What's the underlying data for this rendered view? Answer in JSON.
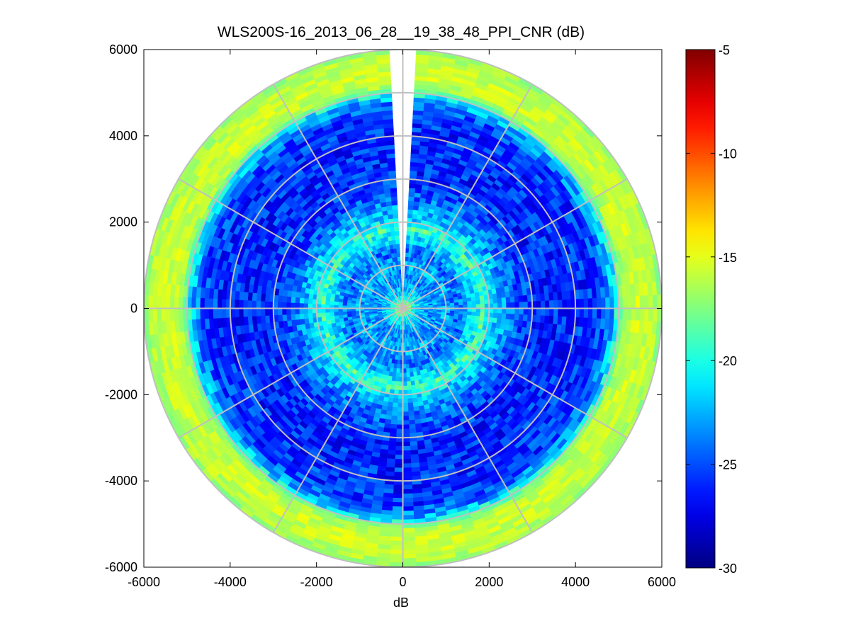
{
  "chart_data": {
    "type": "heatmap",
    "subtype": "polar-ppi",
    "title": "WLS200S-16_2013_06_28__19_38_48_PPI_CNR (dB)",
    "xlabel": "dB",
    "ylabel": "",
    "xlim": [
      -6000,
      6000
    ],
    "ylim": [
      -6000,
      6000
    ],
    "xticks": [
      "-6000",
      "-4000",
      "-2000",
      "0",
      "2000",
      "4000",
      "6000"
    ],
    "yticks": [
      "6000",
      "4000",
      "2000",
      "0",
      "-2000",
      "-4000",
      "-6000"
    ],
    "xtick_values": [
      -6000,
      -4000,
      -2000,
      0,
      2000,
      4000,
      6000
    ],
    "ytick_values": [
      6000,
      4000,
      2000,
      0,
      -2000,
      -4000,
      -6000
    ],
    "max_range": 6000,
    "range_rings": [
      1000,
      2000,
      3000,
      4000,
      5000,
      6000
    ],
    "spoke_angles_deg": [
      0,
      30,
      60,
      90,
      120,
      150,
      180,
      210,
      240,
      270,
      300,
      330
    ],
    "missing_sector_deg": [
      -4,
      4
    ],
    "grid": true,
    "colorbar": {
      "min": -30,
      "max": -5,
      "colormap": "jet",
      "ticks": [
        "-5",
        "-10",
        "-15",
        "-20",
        "-25",
        "-30"
      ],
      "tick_values": [
        -5,
        -10,
        -15,
        -20,
        -25,
        -30
      ]
    },
    "cnr_profile_by_range": {
      "range_m": [
        0,
        100,
        300,
        600,
        900,
        1000,
        1300,
        1500,
        1700,
        1850,
        2000,
        2100,
        2400,
        2800,
        3200,
        4000,
        4600,
        4900,
        5100,
        5400,
        5800,
        6000
      ],
      "cnr_db": [
        -12,
        -17,
        -21,
        -23.5,
        -23,
        -22.5,
        -24.5,
        -22.5,
        -21,
        -19,
        -21,
        -21.5,
        -23.5,
        -25.5,
        -26,
        -26,
        -25.5,
        -22,
        -16.5,
        -15.5,
        -16,
        -17
      ]
    },
    "colors": {
      "grid": "#c0c0c0",
      "background": "#ffffff",
      "axes": "#000000"
    }
  }
}
